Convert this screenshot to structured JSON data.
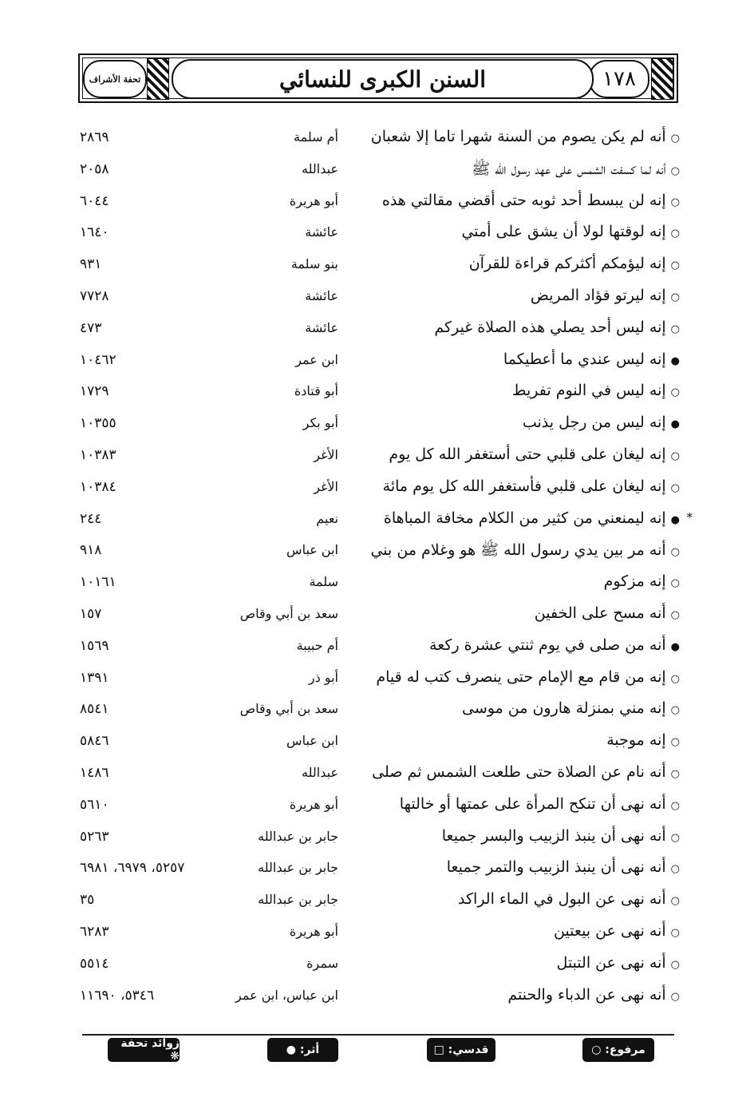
{
  "header": {
    "page_number": "١٧٨",
    "book_title": "السنن الكبرى للنسائي",
    "logo_text": "تحفة الأشراف"
  },
  "rows": [
    {
      "mark": "○",
      "text": "أنه لم يكن يصوم من السنة شهرا تاما إلا شعبان",
      "narrator": "أم سلمة",
      "ref": "٢٨٦٩"
    },
    {
      "mark": "○",
      "text": "أنه لما كسفت الشمس على عهد رسول الله ﷺ",
      "narrator": "عبدالله",
      "ref": "٢٠٥٨"
    },
    {
      "mark": "○",
      "text": "إنه لن يبسط أحد ثوبه حتى أقضي مقالتي هذه",
      "narrator": "أبو هريرة",
      "ref": "٦٠٤٤"
    },
    {
      "mark": "○",
      "text": "إنه لوقتها لولا أن يشق على أمتي",
      "narrator": "عائشة",
      "ref": "١٦٤٠"
    },
    {
      "mark": "○",
      "text": "إنه ليؤمكم أكثركم قراءة للقرآن",
      "narrator": "بنو سلمة",
      "ref": "٩٣١"
    },
    {
      "mark": "○",
      "text": "إنه ليرتو فؤاد المريض",
      "narrator": "عائشة",
      "ref": "٧٧٢٨"
    },
    {
      "mark": "○",
      "text": "إنه ليس أحد يصلي هذه الصلاة غيركم",
      "narrator": "عائشة",
      "ref": "٤٧٣"
    },
    {
      "mark": "●",
      "text": "إنه ليس عندي ما أعطيكما",
      "narrator": "ابن عمر",
      "ref": "١٠٤٦٢"
    },
    {
      "mark": "○",
      "text": "إنه ليس في النوم تفريط",
      "narrator": "أبو قتادة",
      "ref": "١٧٢٩"
    },
    {
      "mark": "●",
      "text": "إنه ليس من رجل يذنب",
      "narrator": "أبو بكر",
      "ref": "١٠٣٥٥"
    },
    {
      "mark": "○",
      "text": "إنه ليغان على قلبي حتى أستغفر الله كل يوم",
      "narrator": "الأغر",
      "ref": "١٠٣٨٣"
    },
    {
      "mark": "○",
      "text": "إنه ليغان على قلبي فأستغفر الله كل يوم مائة",
      "narrator": "الأغر",
      "ref": "١٠٣٨٤"
    },
    {
      "mark": "●",
      "star": "*",
      "text": "إنه ليمنعني من كثير من الكلام مخافة المباهاة",
      "narrator": "نعيم",
      "ref": "٢٤٤"
    },
    {
      "mark": "○",
      "text": "أنه مر بين يدي رسول الله ﷺ هو وغلام من بني",
      "narrator": "ابن عباس",
      "ref": "٩١٨"
    },
    {
      "mark": "○",
      "text": "إنه مزكوم",
      "narrator": "سلمة",
      "ref": "١٠١٦١"
    },
    {
      "mark": "○",
      "text": "أنه مسح على الخفين",
      "narrator": "سعد بن أبي وقاص",
      "ref": "١٥٧"
    },
    {
      "mark": "●",
      "text": "أنه من صلى في يوم ثنتي عشرة ركعة",
      "narrator": "أم حبيبة",
      "ref": "١٥٦٩"
    },
    {
      "mark": "○",
      "text": "إنه من قام مع الإمام حتى ينصرف كتب له قيام",
      "narrator": "أبو ذر",
      "ref": "١٣٩١"
    },
    {
      "mark": "○",
      "text": "إنه مني بمنزلة هارون من موسى",
      "narrator": "سعد بن أبي وقاص",
      "ref": "٨٥٤١"
    },
    {
      "mark": "○",
      "text": "إنه موجبة",
      "narrator": "ابن عباس",
      "ref": "٥٨٤٦"
    },
    {
      "mark": "○",
      "text": "أنه نام عن الصلاة حتى طلعت الشمس ثم صلى",
      "narrator": "عبدالله",
      "ref": "١٤٨٦"
    },
    {
      "mark": "○",
      "text": "أنه نهى أن تنكح المرأة على عمتها أو خالتها",
      "narrator": "أبو هريرة",
      "ref": "٥٦١٠"
    },
    {
      "mark": "○",
      "text": "أنه نهى أن ينبذ الزبيب والبسر جميعا",
      "narrator": "جابر بن عبدالله",
      "ref": "٥٢٦٣"
    },
    {
      "mark": "○",
      "text": "أنه نهى أن ينبذ الزبيب والتمر جميعا",
      "narrator": "جابر بن عبدالله",
      "ref": "٥٢٥٧، ٦٩٧٩، ٦٩٨١"
    },
    {
      "mark": "○",
      "text": "أنه نهى عن البول في الماء الراكد",
      "narrator": "جابر بن عبدالله",
      "ref": "٣٥"
    },
    {
      "mark": "○",
      "text": "أنه نهى عن بيعتين",
      "narrator": "أبو هريرة",
      "ref": "٦٢٨٣"
    },
    {
      "mark": "○",
      "text": "أنه نهى عن التبتل",
      "narrator": "سمرة",
      "ref": "٥٥١٤"
    },
    {
      "mark": "○",
      "text": "أنه نهى عن الدباء والحنتم",
      "narrator": "ابن عباس، ابن عمر",
      "ref": "٥٣٤٦، ١١٦٩٠"
    }
  ],
  "legend": [
    {
      "label": "مرفوع: ○"
    },
    {
      "label": "قدسي: □"
    },
    {
      "label": "أثر: ●"
    },
    {
      "label": "زوائد تحفة ❋"
    }
  ]
}
